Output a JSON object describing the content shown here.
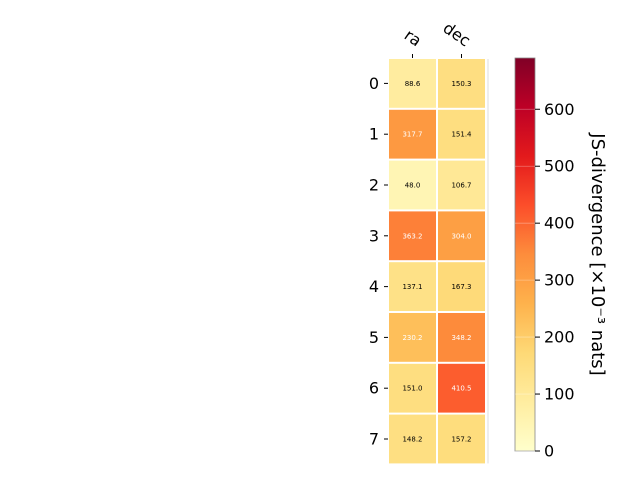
{
  "chart_data": {
    "type": "heatmap",
    "title": "",
    "columns": [
      "ra",
      "dec"
    ],
    "rows": [
      "0",
      "1",
      "2",
      "3",
      "4",
      "5",
      "6",
      "7"
    ],
    "values": [
      [
        88.6,
        150.3
      ],
      [
        317.7,
        151.4
      ],
      [
        48.0,
        106.7
      ],
      [
        363.2,
        304.0
      ],
      [
        137.1,
        167.3
      ],
      [
        230.2,
        348.2
      ],
      [
        151.0,
        410.5
      ],
      [
        148.2,
        157.2
      ]
    ],
    "cell_labels": [
      [
        "88.6",
        "150.3"
      ],
      [
        "317.7",
        "151.4"
      ],
      [
        "48.0",
        "106.7"
      ],
      [
        "363.2",
        "304.0"
      ],
      [
        "137.1",
        "167.3"
      ],
      [
        "230.2",
        "348.2"
      ],
      [
        "151.0",
        "410.5"
      ],
      [
        "148.2",
        "157.2"
      ]
    ],
    "colorbar": {
      "label": "JS-divergence [×10⁻³ nats]",
      "min": 0,
      "max": 690,
      "ticks": [
        "0",
        "100",
        "200",
        "300",
        "400",
        "500",
        "600"
      ],
      "tick_values": [
        0,
        100,
        200,
        300,
        400,
        500,
        600
      ],
      "colormap": "YlOrRd"
    },
    "grid": false
  }
}
